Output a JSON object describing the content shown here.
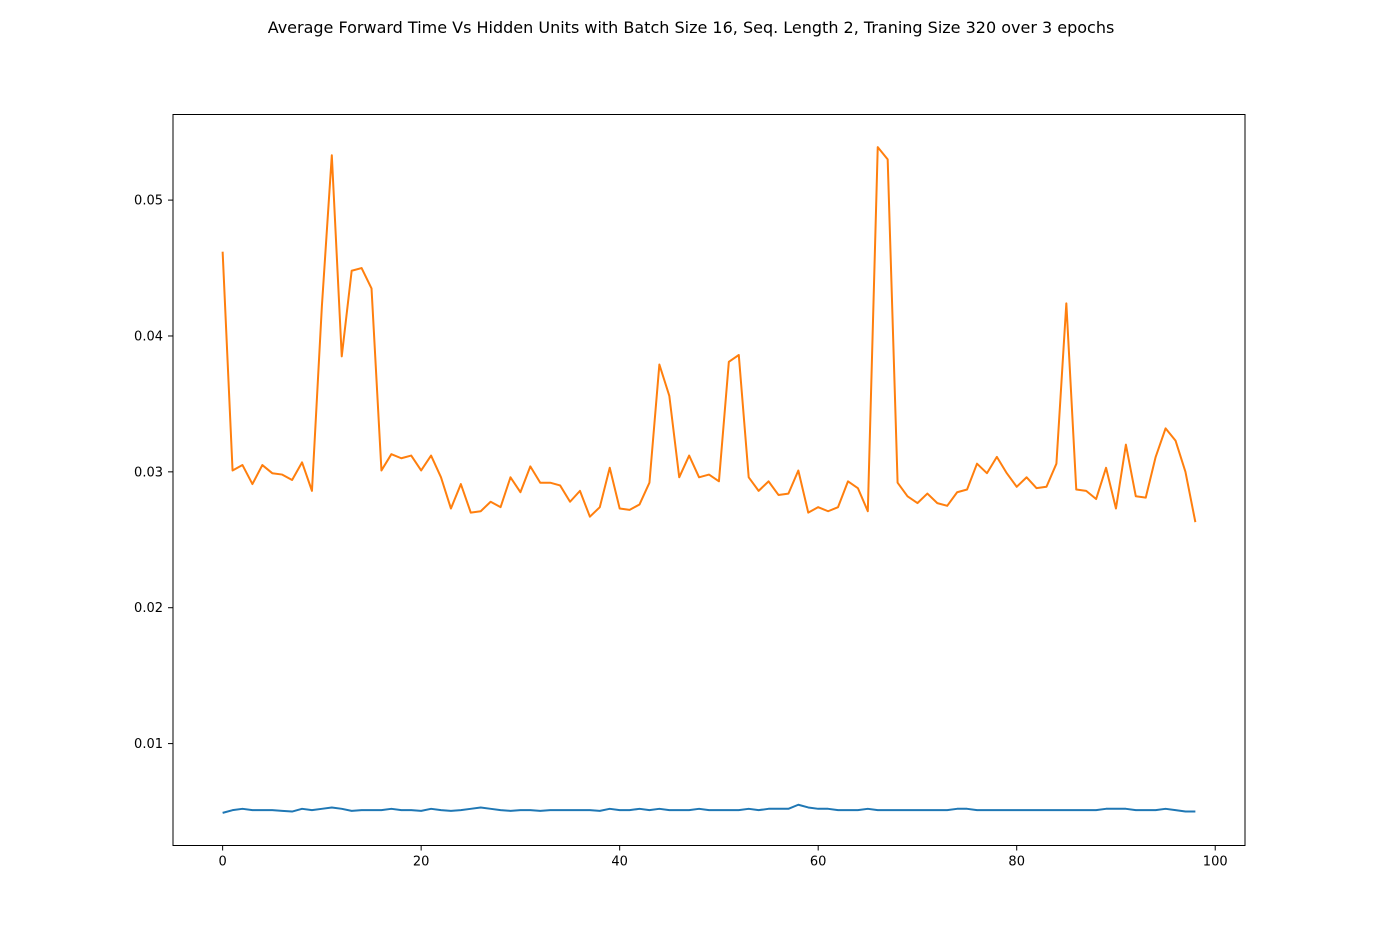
{
  "chart_data": {
    "type": "line",
    "title": "Average Forward Time Vs Hidden Units with Batch Size 16, Seq. Length 2, Traning Size 320 over 3 epochs",
    "xlabel": "",
    "ylabel": "",
    "xlim": [
      -5,
      103
    ],
    "ylim": [
      0.0025,
      0.0563
    ],
    "xticks": [
      0,
      20,
      40,
      60,
      80,
      100
    ],
    "xtick_labels": [
      "0",
      "20",
      "40",
      "60",
      "80",
      "100"
    ],
    "yticks": [
      0.01,
      0.02,
      0.03,
      0.04,
      0.05
    ],
    "ytick_labels": [
      "0.01",
      "0.02",
      "0.03",
      "0.04",
      "0.05"
    ],
    "grid": false,
    "series": [
      {
        "color": "#1f77b4",
        "values": [
          0.0049,
          0.0051,
          0.0052,
          0.0051,
          0.0051,
          0.0051,
          0.00505,
          0.005,
          0.0052,
          0.0051,
          0.0052,
          0.0053,
          0.0052,
          0.00505,
          0.0051,
          0.0051,
          0.0051,
          0.0052,
          0.0051,
          0.0051,
          0.00505,
          0.0052,
          0.0051,
          0.00505,
          0.0051,
          0.0052,
          0.0053,
          0.0052,
          0.0051,
          0.00505,
          0.0051,
          0.0051,
          0.00505,
          0.0051,
          0.0051,
          0.0051,
          0.0051,
          0.0051,
          0.00505,
          0.0052,
          0.0051,
          0.0051,
          0.0052,
          0.0051,
          0.0052,
          0.0051,
          0.0051,
          0.0051,
          0.0052,
          0.0051,
          0.0051,
          0.0051,
          0.0051,
          0.0052,
          0.0051,
          0.0052,
          0.0052,
          0.0052,
          0.0055,
          0.0053,
          0.0052,
          0.0052,
          0.0051,
          0.0051,
          0.0051,
          0.0052,
          0.0051,
          0.0051,
          0.0051,
          0.0051,
          0.0051,
          0.0051,
          0.0051,
          0.0051,
          0.0052,
          0.0052,
          0.0051,
          0.0051,
          0.0051,
          0.0051,
          0.0051,
          0.0051,
          0.0051,
          0.0051,
          0.0051,
          0.0051,
          0.0051,
          0.0051,
          0.0051,
          0.0052,
          0.0052,
          0.0052,
          0.0051,
          0.0051,
          0.0051,
          0.0052,
          0.0051,
          0.005,
          0.005
        ]
      },
      {
        "color": "#ff7f0e",
        "values": [
          0.0462,
          0.0301,
          0.0305,
          0.0291,
          0.0305,
          0.0299,
          0.0298,
          0.0294,
          0.0307,
          0.0286,
          0.0422,
          0.0533,
          0.0385,
          0.0448,
          0.045,
          0.0435,
          0.0301,
          0.0313,
          0.031,
          0.0312,
          0.0301,
          0.0312,
          0.0296,
          0.0273,
          0.0291,
          0.027,
          0.0271,
          0.0278,
          0.0274,
          0.0296,
          0.0285,
          0.0304,
          0.0292,
          0.0292,
          0.029,
          0.0278,
          0.0286,
          0.0267,
          0.0274,
          0.0303,
          0.0273,
          0.0272,
          0.0276,
          0.0292,
          0.0379,
          0.0356,
          0.0296,
          0.0312,
          0.0296,
          0.0298,
          0.0293,
          0.0381,
          0.0386,
          0.0296,
          0.0286,
          0.0293,
          0.0283,
          0.0284,
          0.0301,
          0.027,
          0.0274,
          0.0271,
          0.0274,
          0.0293,
          0.0288,
          0.0271,
          0.0539,
          0.053,
          0.0292,
          0.0282,
          0.0277,
          0.0284,
          0.0277,
          0.0275,
          0.0285,
          0.0287,
          0.0306,
          0.0299,
          0.0311,
          0.0299,
          0.0289,
          0.0296,
          0.0288,
          0.0289,
          0.0306,
          0.0424,
          0.0287,
          0.0286,
          0.028,
          0.0303,
          0.0273,
          0.032,
          0.0282,
          0.0281,
          0.0311,
          0.0332,
          0.0323,
          0.03,
          0.0263
        ]
      }
    ]
  }
}
